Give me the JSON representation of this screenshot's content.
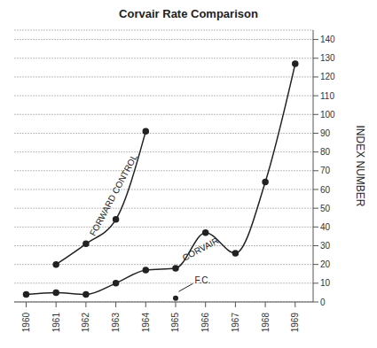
{
  "chart_data": {
    "type": "line",
    "title": "Corvair Rate Comparison",
    "y_label": "INDEX NUMBER",
    "x": [
      1960,
      1961,
      1962,
      1963,
      1964,
      1965,
      1966,
      1967,
      1968,
      1969
    ],
    "series": [
      {
        "name": "FORWARD CONTROL",
        "color": "#222222",
        "marker": "circle",
        "line_style": "solid",
        "values": [
          null,
          20,
          31,
          44,
          91,
          null,
          null,
          null,
          null,
          null
        ]
      },
      {
        "name": "CORVAIR",
        "color": "#222222",
        "marker": "circle",
        "line_style": "solid",
        "values": [
          4,
          5,
          4,
          10,
          17,
          18,
          37,
          26,
          64,
          127
        ]
      }
    ],
    "annotations": [
      {
        "x": 1965,
        "y": 2,
        "text": "F.C."
      }
    ],
    "xlim": [
      1959.6,
      1969.6
    ],
    "xticks": [
      1960,
      1961,
      1962,
      1963,
      1964,
      1965,
      1966,
      1967,
      1968,
      1969
    ],
    "ylim": [
      0,
      145
    ],
    "yticks": [
      0,
      10,
      20,
      30,
      40,
      50,
      60,
      70,
      80,
      90,
      100,
      110,
      120,
      130,
      140
    ],
    "grid": true,
    "legend": false
  }
}
